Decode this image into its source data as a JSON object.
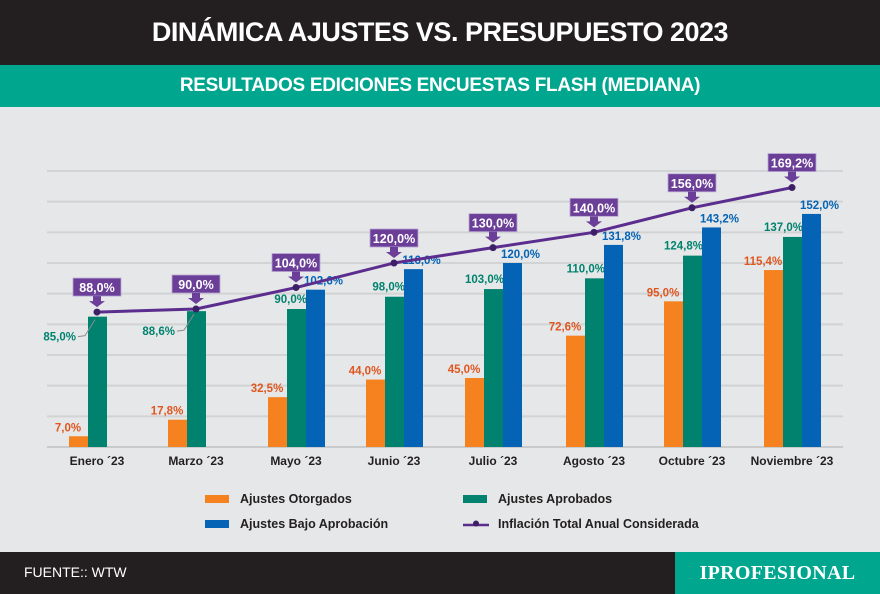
{
  "header": {
    "title": "DINÁMICA AJUSTES VS. PRESUPUESTO  2023",
    "subtitle": "RESULTADOS EDICIONES ENCUESTAS FLASH  (MEDIANA)"
  },
  "footer": {
    "source": "FUENTE:: WTW",
    "brand": "IPROFESIONAL"
  },
  "colors": {
    "otorgados": "#f5821f",
    "aprobados": "#00826f",
    "bajo_aprobacion": "#0463b5",
    "inflacion": "#5b2d8e",
    "callout": "#6b3f98",
    "header_bg": "#231f20",
    "accent": "#00a68e"
  },
  "chart_data": {
    "type": "bar",
    "title": "DINÁMICA AJUSTES VS. PRESUPUESTO  2023",
    "subtitle": "RESULTADOS EDICIONES ENCUESTAS FLASH  (MEDIANA)",
    "categories": [
      "Enero ´23",
      "Marzo ´23",
      "Mayo ´23",
      "Junio ´23",
      "Julio ´23",
      "Agosto ´23",
      "Octubre ´23",
      "Noviembre ´23"
    ],
    "ylim": [
      0,
      180
    ],
    "grid": true,
    "legend_position": "bottom",
    "series": [
      {
        "name": "Ajustes Otorgados",
        "kind": "bar",
        "values": [
          7.0,
          17.8,
          32.5,
          44.0,
          45.0,
          72.6,
          95.0,
          115.4
        ],
        "labels": [
          "7,0%",
          "17,8%",
          "32,5%",
          "44,0%",
          "45,0%",
          "72,6%",
          "95,0%",
          "115,4%"
        ]
      },
      {
        "name": "Ajustes Aprobados",
        "kind": "bar",
        "values": [
          85.0,
          88.6,
          90.0,
          98.0,
          103.0,
          110.0,
          124.8,
          137.0
        ],
        "labels": [
          "85,0%",
          "88,6%",
          "90,0%",
          "98,0%",
          "103,0%",
          "110,0%",
          "124,8%",
          "137,0%"
        ]
      },
      {
        "name": "Ajustes Bajo Aprobación",
        "kind": "bar",
        "values": [
          null,
          null,
          102.6,
          116.0,
          120.0,
          131.8,
          143.2,
          152.0
        ],
        "labels": [
          null,
          null,
          "102,6%",
          "116,0%",
          "120,0%",
          "131,8%",
          "143,2%",
          "152,0%"
        ]
      },
      {
        "name": "Inflación Total Anual Considerada",
        "kind": "line",
        "values": [
          88.0,
          90.0,
          104.0,
          120.0,
          130.0,
          140.0,
          156.0,
          169.2
        ],
        "labels": [
          "88,0%",
          "90,0%",
          "104,0%",
          "120,0%",
          "130,0%",
          "140,0%",
          "156,0%",
          "169,2%"
        ]
      }
    ]
  }
}
